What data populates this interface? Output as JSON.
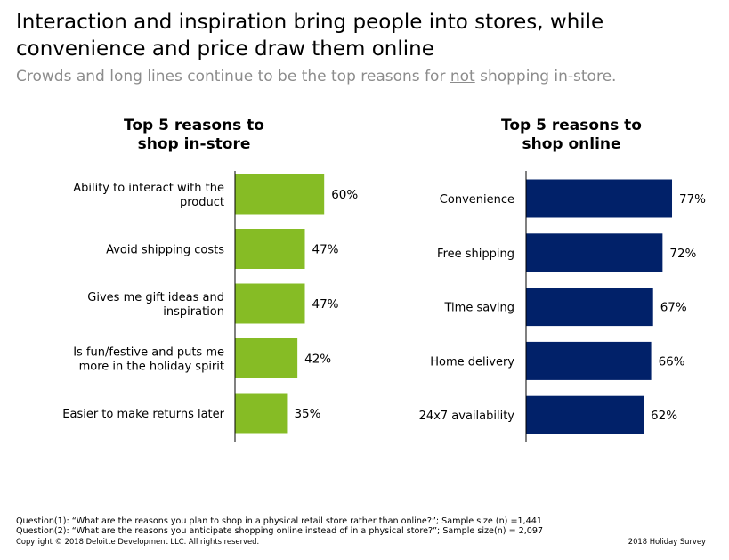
{
  "title": "Interaction and inspiration bring people into stores, while convenience and price draw them online",
  "subtitle": {
    "before": "Crowds and long lines continue to be the top reasons for ",
    "emphasis": "not",
    "after": " shopping in-store."
  },
  "colors": {
    "instore": "#86bc25",
    "online": "#012169"
  },
  "chart_data": [
    {
      "type": "bar",
      "orientation": "horizontal",
      "title": "Top 5 reasons to shop in-store",
      "title_lines": [
        "Top 5 reasons to",
        "shop in-store"
      ],
      "categories": [
        [
          "Ability to interact with the",
          "product"
        ],
        [
          "Avoid shipping costs"
        ],
        [
          "Gives me gift ideas and",
          "inspiration"
        ],
        [
          "Is fun/festive and puts me",
          "more in the holiday spirit"
        ],
        [
          "Easier to make returns later"
        ]
      ],
      "values": [
        60,
        47,
        47,
        42,
        35
      ],
      "labels": [
        "60%",
        "47%",
        "47%",
        "42%",
        "35%"
      ],
      "unit": "%",
      "color": "#86bc25"
    },
    {
      "type": "bar",
      "orientation": "horizontal",
      "title": "Top 5 reasons to shop online",
      "title_lines": [
        "Top 5 reasons to",
        "shop online"
      ],
      "categories": [
        [
          "Convenience"
        ],
        [
          "Free shipping"
        ],
        [
          "Time saving"
        ],
        [
          "Home delivery"
        ],
        [
          "24x7 availability"
        ]
      ],
      "values": [
        77,
        72,
        67,
        66,
        62
      ],
      "labels": [
        "77%",
        "72%",
        "67%",
        "66%",
        "62%"
      ],
      "unit": "%",
      "color": "#012169"
    }
  ],
  "footer": {
    "question1": "Question(1): “What are the reasons you plan to shop in a physical retail store rather than online?”; Sample size (n) =1,441",
    "question2": "Question(2): “What are the reasons you anticipate shopping online instead of in a physical store?”; Sample size(n) = 2,097",
    "copyright": "Copyright © 2018 Deloitte Development LLC. All rights reserved.",
    "survey": "2018 Holiday Survey"
  }
}
